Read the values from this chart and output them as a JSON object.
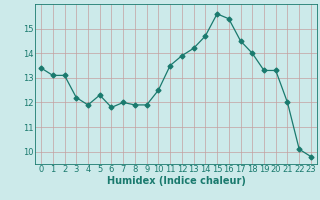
{
  "x": [
    0,
    1,
    2,
    3,
    4,
    5,
    6,
    7,
    8,
    9,
    10,
    11,
    12,
    13,
    14,
    15,
    16,
    17,
    18,
    19,
    20,
    21,
    22,
    23
  ],
  "y": [
    13.4,
    13.1,
    13.1,
    12.2,
    11.9,
    12.3,
    11.8,
    12.0,
    11.9,
    11.9,
    12.5,
    13.5,
    13.9,
    14.2,
    14.7,
    15.6,
    15.4,
    14.5,
    14.0,
    13.3,
    13.3,
    12.0,
    10.1,
    9.8
  ],
  "line_color": "#1a7a6e",
  "marker": "D",
  "marker_size": 2.5,
  "bg_color": "#cceaea",
  "grid_color_v": "#c4a0a0",
  "grid_color_h": "#c4a0a0",
  "xlabel": "Humidex (Indice chaleur)",
  "xlim": [
    -0.5,
    23.5
  ],
  "ylim": [
    9.5,
    16.0
  ],
  "yticks": [
    10,
    11,
    12,
    13,
    14,
    15
  ],
  "xticks": [
    0,
    1,
    2,
    3,
    4,
    5,
    6,
    7,
    8,
    9,
    10,
    11,
    12,
    13,
    14,
    15,
    16,
    17,
    18,
    19,
    20,
    21,
    22,
    23
  ],
  "font_color": "#1a7a6e",
  "tick_label_size": 6.0,
  "xlabel_size": 7.0
}
